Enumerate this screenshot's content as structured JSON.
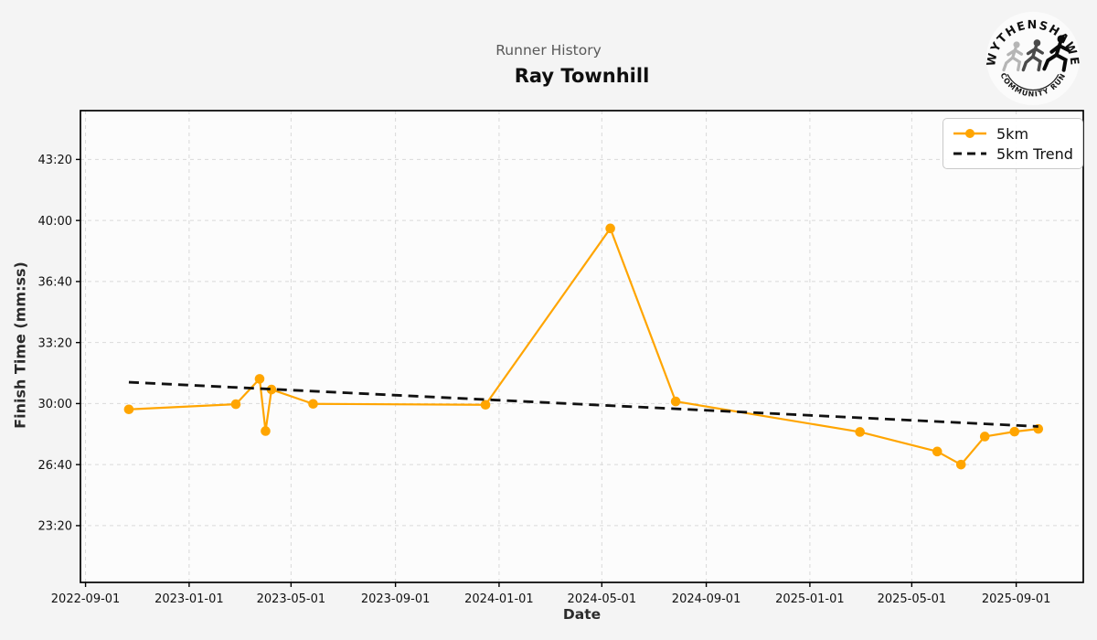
{
  "header": {
    "suptitle": "Runner History",
    "title": "Ray Townhill"
  },
  "logo": {
    "top_text": "WYTHENSHAWE",
    "bottom_text": "COMMUNITY RUN",
    "runner_colors": [
      "#b5b5b5",
      "#4a4a4a",
      "#0a0a0a"
    ]
  },
  "chart_data": {
    "type": "line",
    "title": "Runner History",
    "subtitle": "Ray Townhill",
    "xlabel": "Date",
    "ylabel": "Finish Time (mm:ss)",
    "grid": true,
    "legend_position": "upper right",
    "xlim": [
      "2022-08-26",
      "2025-11-19"
    ],
    "ylim_seconds": [
      1214,
      2760
    ],
    "x_ticks": [
      "2022-09-01",
      "2023-01-01",
      "2023-05-01",
      "2023-09-01",
      "2024-01-01",
      "2024-05-01",
      "2024-09-01",
      "2025-01-01",
      "2025-05-01",
      "2025-09-01"
    ],
    "y_ticks": [
      {
        "seconds": 1400,
        "label": "23:20"
      },
      {
        "seconds": 1600,
        "label": "26:40"
      },
      {
        "seconds": 1800,
        "label": "30:00"
      },
      {
        "seconds": 2000,
        "label": "33:20"
      },
      {
        "seconds": 2200,
        "label": "36:40"
      },
      {
        "seconds": 2400,
        "label": "40:00"
      },
      {
        "seconds": 2600,
        "label": "43:20"
      }
    ],
    "series": [
      {
        "name": "5km",
        "color": "#FFA500",
        "marker": "circle",
        "points": [
          {
            "date": "2022-10-22",
            "time": "29:41",
            "seconds": 1781
          },
          {
            "date": "2023-02-25",
            "time": "29:58",
            "seconds": 1798
          },
          {
            "date": "2023-03-25",
            "time": "31:21",
            "seconds": 1881
          },
          {
            "date": "2023-04-01",
            "time": "28:30",
            "seconds": 1710
          },
          {
            "date": "2023-04-08",
            "time": "30:46",
            "seconds": 1846
          },
          {
            "date": "2023-05-27",
            "time": "29:59",
            "seconds": 1799
          },
          {
            "date": "2023-12-16",
            "time": "29:56",
            "seconds": 1796
          },
          {
            "date": "2024-05-11",
            "time": "39:34",
            "seconds": 2374
          },
          {
            "date": "2024-07-27",
            "time": "30:07",
            "seconds": 1807
          },
          {
            "date": "2025-03-01",
            "time": "28:27",
            "seconds": 1707
          },
          {
            "date": "2025-05-31",
            "time": "27:23",
            "seconds": 1643
          },
          {
            "date": "2025-06-28",
            "time": "26:40",
            "seconds": 1600
          },
          {
            "date": "2025-07-26",
            "time": "28:12",
            "seconds": 1692
          },
          {
            "date": "2025-08-30",
            "time": "28:28",
            "seconds": 1708
          },
          {
            "date": "2025-09-27",
            "time": "28:37",
            "seconds": 1717
          }
        ]
      }
    ],
    "trend": {
      "name": "5km Trend",
      "color": "#111111",
      "style": "dashed",
      "start": {
        "date": "2022-10-22",
        "time": "31:10",
        "seconds": 1870
      },
      "end": {
        "date": "2025-09-27",
        "time": "28:45",
        "seconds": 1725
      }
    },
    "legend": {
      "items": [
        {
          "label": "5km"
        },
        {
          "label": "5km Trend"
        }
      ]
    }
  },
  "colors": {
    "figure_bg": "#f4f4f4",
    "axes_bg": "#fcfcfc",
    "grid": "#d9d9d9",
    "spine": "#000000",
    "accent_orange": "#FFA500",
    "trend_black": "#111111"
  }
}
